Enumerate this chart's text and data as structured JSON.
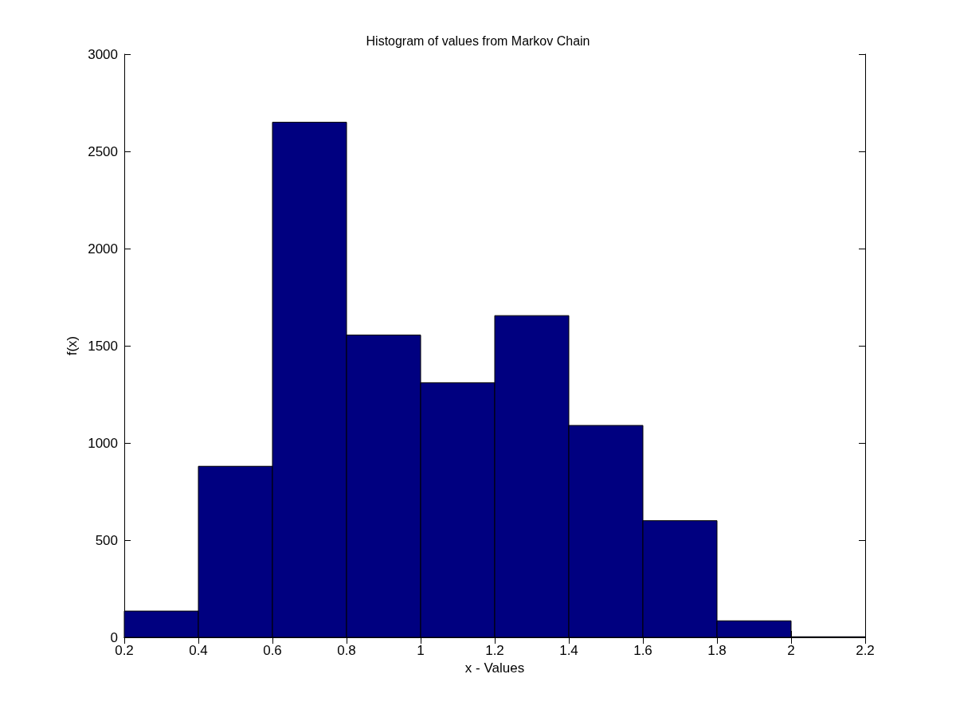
{
  "chart_data": {
    "type": "histogram",
    "title": "Histogram of values from Markov Chain",
    "xlabel": "x - Values",
    "ylabel": "f(x)",
    "bins": [
      0.2,
      0.4,
      0.6,
      0.8,
      1.0,
      1.2,
      1.4,
      1.6,
      1.8,
      2.0,
      2.2
    ],
    "values": [
      135,
      880,
      2650,
      1555,
      1310,
      1655,
      1090,
      600,
      85,
      3
    ],
    "color": "#000080",
    "xlim": [
      0.2,
      2.2
    ],
    "xticks": [
      0.2,
      0.4,
      0.6,
      0.8,
      1,
      1.2,
      1.4,
      1.6,
      1.8,
      2,
      2.2
    ],
    "ylim": [
      0,
      3000
    ],
    "yticks": [
      0,
      500,
      1000,
      1500,
      2000,
      2500,
      3000
    ]
  }
}
